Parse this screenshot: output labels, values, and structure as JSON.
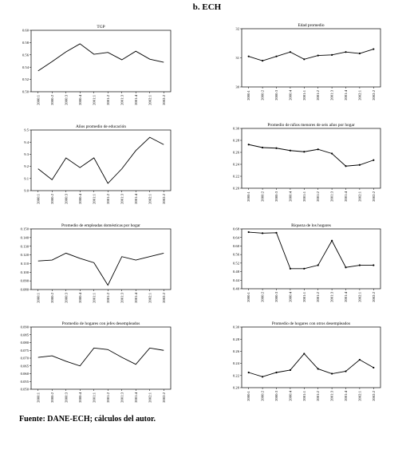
{
  "page": {
    "title": "b. ECH",
    "source": "Fuente: DANE-ECH; cálculos del autor."
  },
  "chart_data": [
    {
      "type": "line",
      "title": "TGP",
      "x": [
        "2000:1",
        "2000:2",
        "2000:3",
        "2000:4",
        "2001:1",
        "2001:2",
        "2001:3",
        "2001:4",
        "2002:1",
        "2002:2"
      ],
      "values": [
        0.534,
        0.549,
        0.565,
        0.578,
        0.561,
        0.564,
        0.552,
        0.566,
        0.553,
        0.548
      ],
      "markers": false,
      "ylim": [
        0.5,
        0.6
      ],
      "yticks": [
        "0.50",
        "0.52",
        "0.54",
        "0.56",
        "0.58",
        "0.60"
      ]
    },
    {
      "type": "line",
      "title": "Edad promedio",
      "x": [
        "2000:1",
        "2000:2",
        "2000:3",
        "2000:4",
        "2001:1",
        "2001:2",
        "2001:3",
        "2001:4",
        "2002:1",
        "2002:2"
      ],
      "values": [
        31.05,
        30.9,
        31.05,
        31.2,
        30.95,
        31.08,
        31.1,
        31.2,
        31.15,
        31.3
      ],
      "markers": true,
      "ylim": [
        30,
        32
      ],
      "yticks": [
        "30",
        "31",
        "32"
      ]
    },
    {
      "type": "line",
      "title": "Años promedio de educación",
      "x": [
        "2000:1",
        "2000:2",
        "2000:3",
        "2000:4",
        "2001:1",
        "2001:2",
        "2001:3",
        "2001:4",
        "2002:1",
        "2002:2"
      ],
      "values": [
        9.18,
        9.09,
        9.27,
        9.19,
        9.27,
        9.06,
        9.18,
        9.33,
        9.44,
        9.38
      ],
      "markers": false,
      "ylim": [
        9.0,
        9.5
      ],
      "yticks": [
        "9.0",
        "9.1",
        "9.2",
        "9.3",
        "9.4",
        "9.5"
      ]
    },
    {
      "type": "line",
      "title": "Promedio de niños menores de seis años por hogar",
      "x": [
        "2000:1",
        "2000:2",
        "2000:3",
        "2000:4",
        "2001:1",
        "2001:2",
        "2001:3",
        "2001:4",
        "2002:1",
        "2002:2"
      ],
      "values": [
        0.273,
        0.268,
        0.267,
        0.263,
        0.261,
        0.265,
        0.258,
        0.237,
        0.239,
        0.247
      ],
      "markers": true,
      "ylim": [
        0.2,
        0.3
      ],
      "yticks": [
        "0.20",
        "0.22",
        "0.24",
        "0.26",
        "0.28",
        "0.30"
      ]
    },
    {
      "type": "line",
      "title": "Promedio de empleadas domésticas por hogar",
      "x": [
        "2000:1",
        "2000:2",
        "2000:3",
        "2000:4",
        "2001:1",
        "2001:2",
        "2001:3",
        "2001:4",
        "2002:1",
        "2002:2"
      ],
      "values": [
        0.113,
        0.114,
        0.122,
        0.116,
        0.111,
        0.085,
        0.118,
        0.114,
        0.118,
        0.122
      ],
      "markers": false,
      "ylim": [
        0.08,
        0.15
      ],
      "yticks": [
        "0.080",
        "0.090",
        "0.100",
        "0.110",
        "0.120",
        "0.130",
        "0.140",
        "0.150"
      ]
    },
    {
      "type": "line",
      "title": "Riqueza de los hogares",
      "x": [
        "2000:1",
        "2000:2",
        "2000:3",
        "2000:4",
        "2001:1",
        "2001:2",
        "2001:3",
        "2001:4",
        "2002:1",
        "2002:2"
      ],
      "values": [
        0.665,
        0.66,
        0.662,
        0.494,
        0.494,
        0.51,
        0.625,
        0.5,
        0.51,
        0.51
      ],
      "markers": true,
      "ylim": [
        0.4,
        0.68
      ],
      "yticks": [
        "0.40",
        "0.44",
        "0.48",
        "0.52",
        "0.56",
        "0.60",
        "0.64",
        "0.68"
      ]
    },
    {
      "type": "line",
      "title": "Promedio de hogares con jefes desempleados",
      "x": [
        "2000:1",
        "2000:2",
        "2000:3",
        "2000:4",
        "2001:1",
        "2001:2",
        "2001:3",
        "2001:4",
        "2002:1",
        "2002:2"
      ],
      "values": [
        0.0705,
        0.0715,
        0.068,
        0.065,
        0.0765,
        0.0755,
        0.0705,
        0.066,
        0.0765,
        0.075
      ],
      "markers": false,
      "ylim": [
        0.05,
        0.09
      ],
      "yticks": [
        "0.050",
        "0.055",
        "0.060",
        "0.065",
        "0.070",
        "0.075",
        "0.080",
        "0.085",
        "0.090"
      ]
    },
    {
      "type": "line",
      "title": "Promedio de hogares con otros desempleados",
      "x": [
        "2000:1",
        "2000:2",
        "2000:3",
        "2000:4",
        "2001:1",
        "2001:2",
        "2001:3",
        "2001:4",
        "2002:1",
        "2002:2"
      ],
      "values": [
        0.225,
        0.218,
        0.225,
        0.229,
        0.256,
        0.231,
        0.223,
        0.227,
        0.246,
        0.233
      ],
      "markers": true,
      "ylim": [
        0.2,
        0.3
      ],
      "yticks": [
        "0.20",
        "0.22",
        "0.24",
        "0.26",
        "0.28",
        "0.30"
      ]
    }
  ]
}
